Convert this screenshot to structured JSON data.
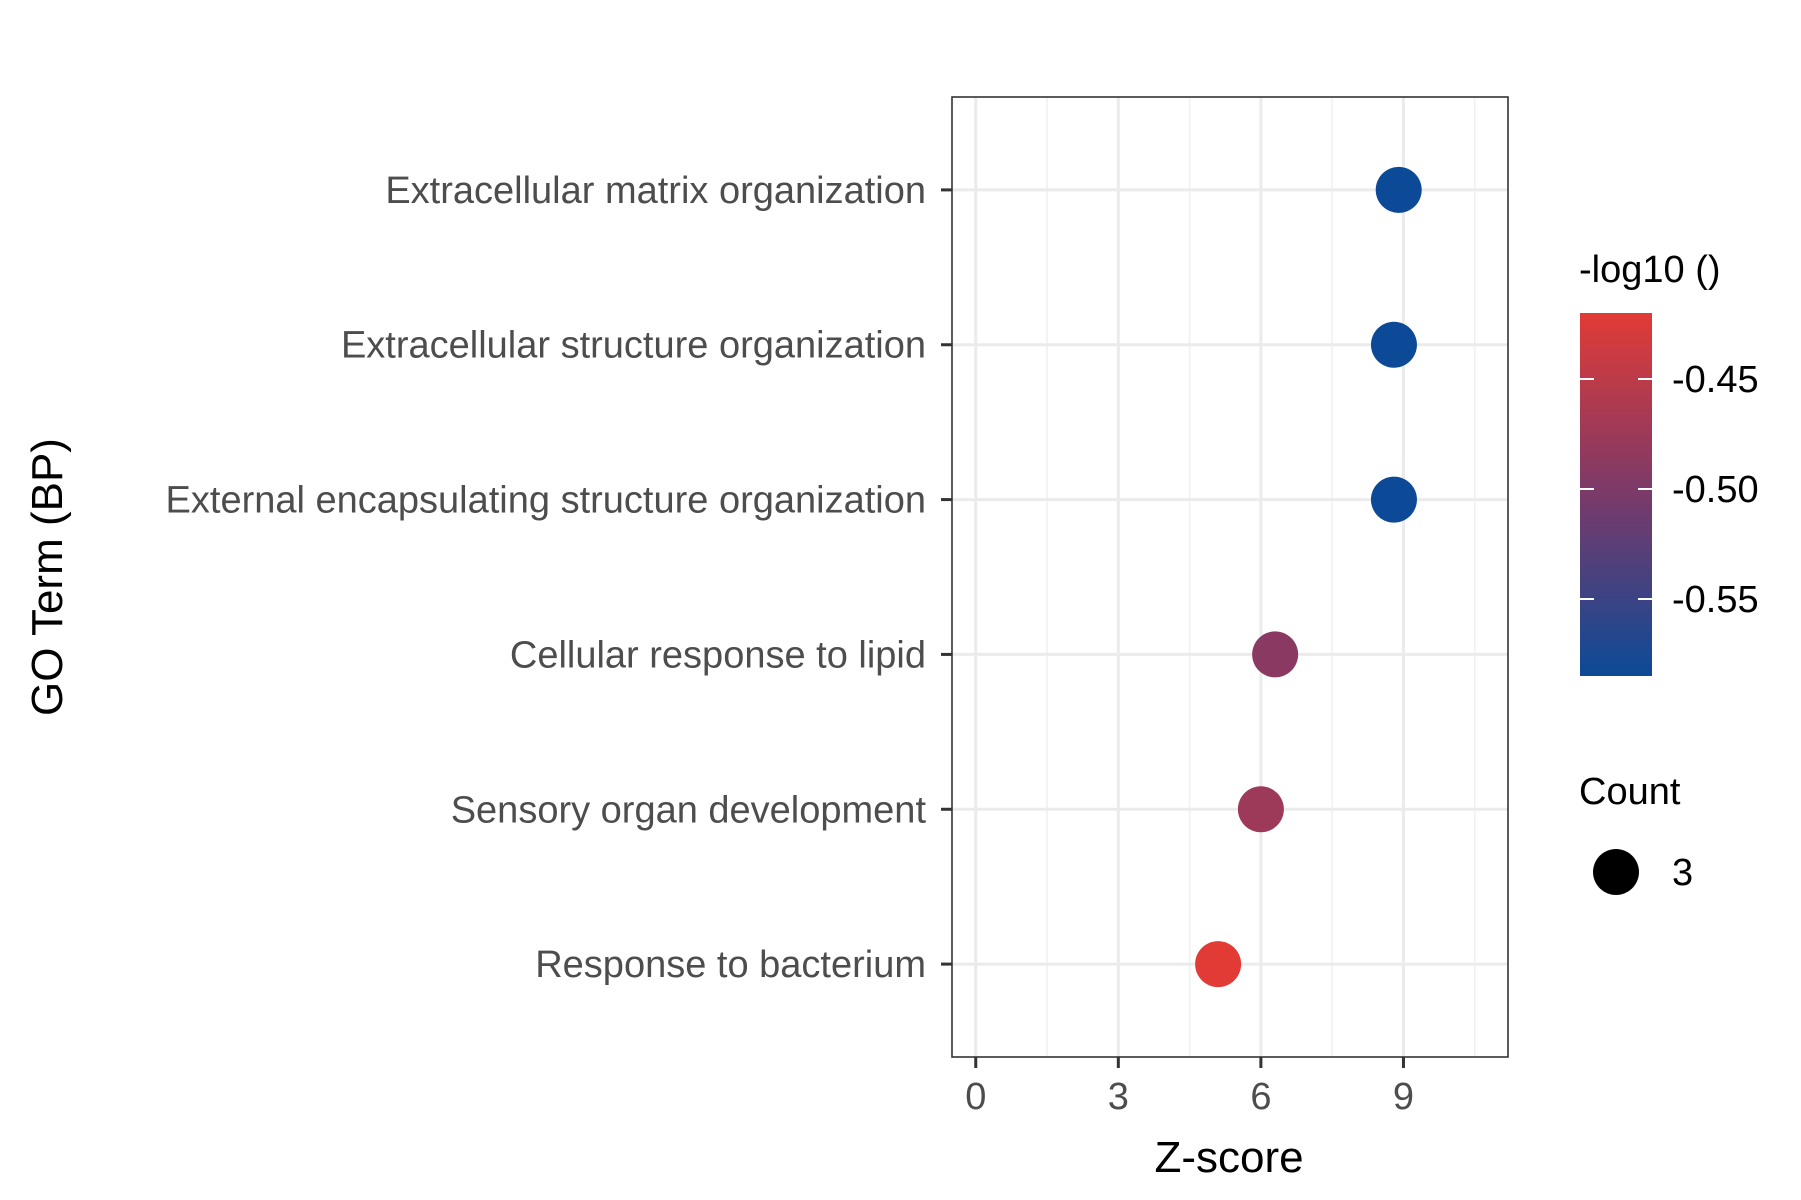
{
  "chart_data": {
    "type": "scatter",
    "xlabel": "Z-score",
    "ylabel": "GO Term (BP)",
    "xlim": [
      -0.5,
      11.2
    ],
    "x_ticks": [
      0,
      3,
      6,
      9
    ],
    "x_tick_labels": [
      "0",
      "3",
      "6",
      "9"
    ],
    "grid": true,
    "categories": [
      "Extracellular matrix organization",
      "Extracellular structure organization",
      "External encapsulating structure organization",
      "Cellular response to lipid",
      "Sensory organ development",
      "Response to bacterium"
    ],
    "points": [
      {
        "term": "Extracellular matrix organization",
        "x": 8.9,
        "color_value": -0.585,
        "count": 3
      },
      {
        "term": "Extracellular structure organization",
        "x": 8.8,
        "color_value": -0.585,
        "count": 3
      },
      {
        "term": "External encapsulating structure organization",
        "x": 8.8,
        "color_value": -0.585,
        "count": 3
      },
      {
        "term": "Cellular response to lipid",
        "x": 6.3,
        "color_value": -0.49,
        "count": 3
      },
      {
        "term": "Sensory organ development",
        "x": 6.0,
        "color_value": -0.475,
        "count": 3
      },
      {
        "term": "Response to bacterium",
        "x": 5.1,
        "color_value": -0.42,
        "count": 3
      }
    ],
    "color_legend": {
      "title": "-log10 ()",
      "range": [
        -0.585,
        -0.42
      ],
      "ticks": [
        -0.45,
        -0.5,
        -0.55
      ],
      "tick_labels": [
        "-0.45",
        "-0.50",
        "-0.55"
      ],
      "low_color": "#0c4a97",
      "high_color": "#e23b36"
    },
    "size_legend": {
      "title": "Count",
      "values": [
        3
      ],
      "labels": [
        "3"
      ]
    },
    "legend_position": "right"
  }
}
